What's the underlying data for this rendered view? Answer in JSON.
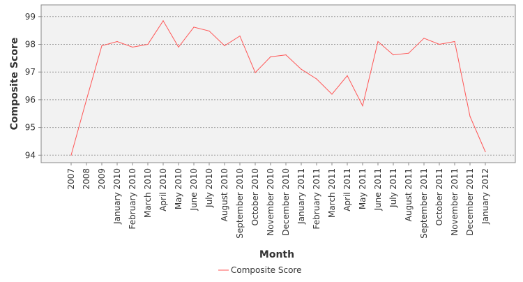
{
  "chart_data": {
    "type": "line",
    "title": "",
    "xlabel": "Month",
    "ylabel": "Composite Score",
    "categories": [
      "2007",
      "2008",
      "2009",
      "January 2010",
      "February 2010",
      "March 2010",
      "April 2010",
      "May 2010",
      "June 2010",
      "July 2010",
      "August 2010",
      "September 2010",
      "October 2010",
      "November 2010",
      "December 2010",
      "January 2011",
      "February 2011",
      "March 2011",
      "April 2011",
      "May 2011",
      "June 2011",
      "July 2011",
      "August 2011",
      "September 2011",
      "October 2011",
      "November 2011",
      "December 2011",
      "January 2012"
    ],
    "series": [
      {
        "name": "Composite Score",
        "color": "#ff5555",
        "values": [
          94.0,
          96.0,
          97.95,
          98.1,
          97.9,
          98.0,
          98.85,
          97.9,
          98.62,
          98.48,
          97.95,
          98.3,
          96.98,
          97.55,
          97.62,
          97.1,
          96.75,
          96.2,
          96.87,
          95.78,
          98.1,
          97.62,
          97.68,
          98.22,
          98.0,
          98.1,
          95.4,
          94.12
        ]
      }
    ],
    "ylim": [
      93.6,
      99.3
    ],
    "yticks": [
      94,
      95,
      96,
      97,
      98,
      99
    ],
    "grid": true,
    "legend_position": "bottom-center",
    "colors": {
      "plot_background": "#f2f2f2",
      "grid": "#999999",
      "axis": "#888888"
    }
  }
}
